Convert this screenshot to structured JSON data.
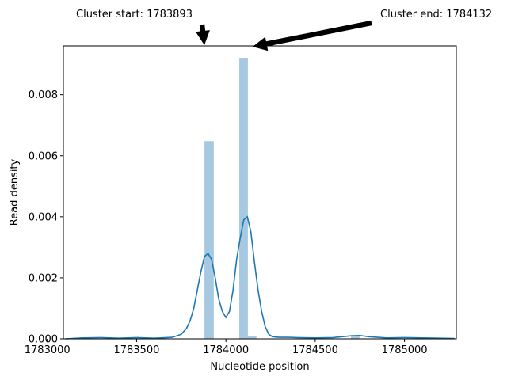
{
  "chart_data": {
    "type": "bar",
    "title": "",
    "xlabel": "Nucleotide position",
    "ylabel": "Read density",
    "xlim": [
      1783090,
      1785290
    ],
    "ylim": [
      0,
      0.0096
    ],
    "xticks": [
      1783000,
      1783500,
      1784000,
      1784500,
      1785000
    ],
    "xtick_labels": [
      "1783000",
      "1783500",
      "1784000",
      "1784500",
      "1785000"
    ],
    "yticks": [
      0,
      0.002,
      0.004,
      0.006,
      0.008
    ],
    "ytick_labels": [
      "0.000",
      "0.002",
      "0.004",
      "0.006",
      "0.008"
    ],
    "grid": false,
    "legend": "none",
    "bar_color": "#a6c8e1",
    "line_color": "#1f77b4",
    "histogram": [
      {
        "x0": 1783880,
        "x1": 1783932,
        "density": 0.00648
      },
      {
        "x0": 1784075,
        "x1": 1784123,
        "density": 0.00921
      },
      {
        "x0": 1784123,
        "x1": 1784171,
        "density": 8e-05
      },
      {
        "x0": 1784700,
        "x1": 1784748,
        "density": 0.00012
      }
    ],
    "kde": {
      "x": [
        1783100,
        1783200,
        1783300,
        1783400,
        1783500,
        1783600,
        1783700,
        1783750,
        1783780,
        1783800,
        1783820,
        1783840,
        1783860,
        1783880,
        1783900,
        1783920,
        1783940,
        1783960,
        1783980,
        1784000,
        1784020,
        1784040,
        1784060,
        1784080,
        1784100,
        1784120,
        1784140,
        1784160,
        1784180,
        1784200,
        1784220,
        1784240,
        1784260,
        1784300,
        1784350,
        1784400,
        1784500,
        1784600,
        1784700,
        1784750,
        1784800,
        1784900,
        1785000,
        1785100,
        1785200,
        1785280
      ],
      "y": [
        0.0,
        3e-05,
        4e-05,
        2e-05,
        4e-05,
        2e-05,
        5e-05,
        0.00015,
        0.00035,
        0.0006,
        0.001,
        0.0016,
        0.0022,
        0.0027,
        0.0028,
        0.0026,
        0.002,
        0.0013,
        0.0009,
        0.0007,
        0.0009,
        0.0016,
        0.0026,
        0.0033,
        0.0039,
        0.004,
        0.0035,
        0.0025,
        0.0016,
        0.0009,
        0.0004,
        0.00015,
        7e-05,
        5e-05,
        5e-05,
        4e-05,
        3e-05,
        4e-05,
        0.0001,
        0.00011,
        7e-05,
        3e-05,
        4e-05,
        3e-05,
        2e-05,
        1e-05
      ]
    },
    "annotations": [
      {
        "text": "Cluster start: 1783893",
        "x": 1783893
      },
      {
        "text": "Cluster end: 1784132",
        "x": 1784132
      }
    ]
  }
}
